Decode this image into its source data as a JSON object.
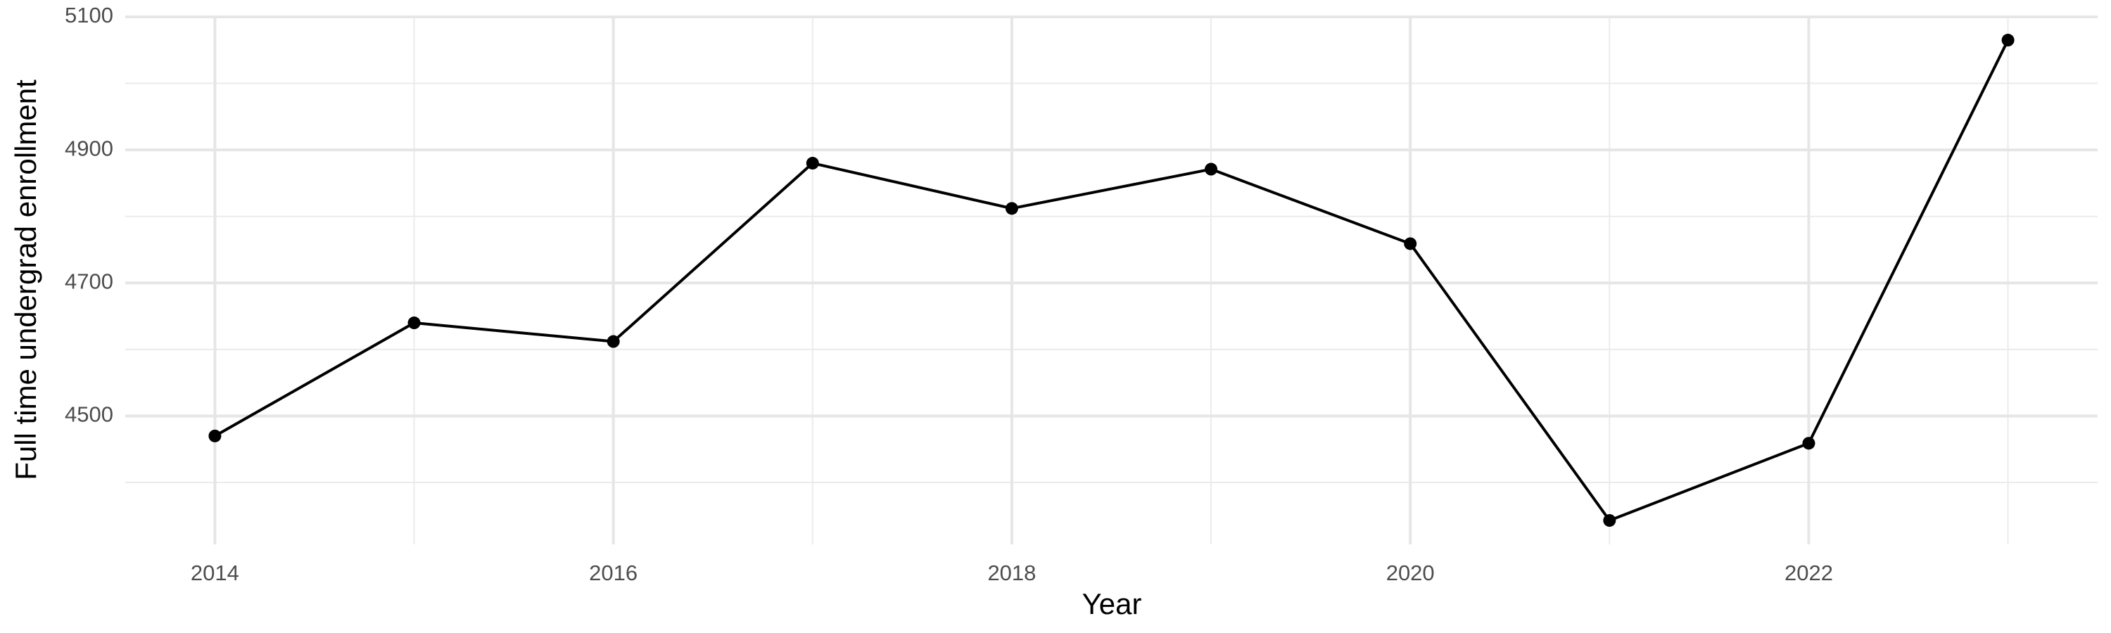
{
  "chart_data": {
    "type": "line",
    "x": [
      2014,
      2015,
      2016,
      2017,
      2018,
      2019,
      2020,
      2021,
      2022,
      2023
    ],
    "values": [
      4470,
      4640,
      4612,
      4880,
      4812,
      4871,
      4759,
      4343,
      4459,
      5065
    ],
    "color": "#000000",
    "x_label": "Year",
    "y_label": "Full time undergrad enrollment",
    "xlim": [
      2013.55,
      2023.45
    ],
    "xticks": [
      2014,
      2016,
      2018,
      2020,
      2022
    ],
    "ylim": [
      4307,
      5101
    ],
    "yticks": [
      4500,
      4700,
      4900,
      5100
    ],
    "grid": true
  }
}
